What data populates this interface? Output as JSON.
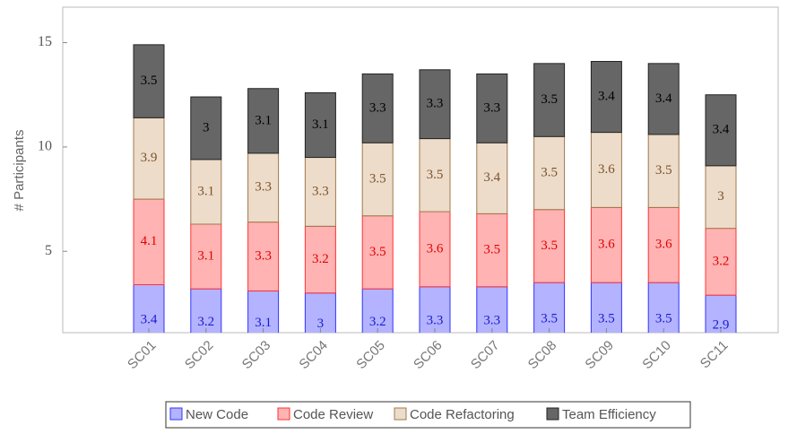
{
  "chart_data": {
    "type": "stacked_bar",
    "y_label": "# Participants",
    "categories": [
      "SC01",
      "SC02",
      "SC03",
      "SC04",
      "SC05",
      "SC06",
      "SC07",
      "SC08",
      "SC09",
      "SC10",
      "SC11"
    ],
    "series": [
      {
        "name": "New Code",
        "color": "#b3b3ff",
        "edge_color": "#3333ff",
        "label_color": "#1a1acc",
        "values": [
          3.4,
          3.2,
          3.1,
          3,
          3.2,
          3.3,
          3.3,
          3.5,
          3.5,
          3.5,
          2.9
        ]
      },
      {
        "name": "Code Review",
        "color": "#ffb3b3",
        "edge_color": "#ff3333",
        "label_color": "#e00000",
        "values": [
          4.1,
          3.1,
          3.3,
          3.2,
          3.5,
          3.6,
          3.5,
          3.5,
          3.6,
          3.6,
          3.2
        ]
      },
      {
        "name": "Code Refactoring",
        "color": "#eddcc9",
        "edge_color": "#a0784f",
        "label_color": "#7a5230",
        "values": [
          3.9,
          3.1,
          3.3,
          3.3,
          3.5,
          3.5,
          3.4,
          3.5,
          3.6,
          3.5,
          3
        ]
      },
      {
        "name": "Team Efficiency",
        "color": "#666666",
        "edge_color": "#222222",
        "label_color": "#000000",
        "values": [
          3.5,
          3,
          3.1,
          3.1,
          3.3,
          3.3,
          3.3,
          3.5,
          3.4,
          3.4,
          3.4
        ]
      }
    ],
    "ylim": [
      1.1,
      16.7
    ],
    "yticks": [
      5,
      10,
      15
    ],
    "legend": "bottom"
  }
}
